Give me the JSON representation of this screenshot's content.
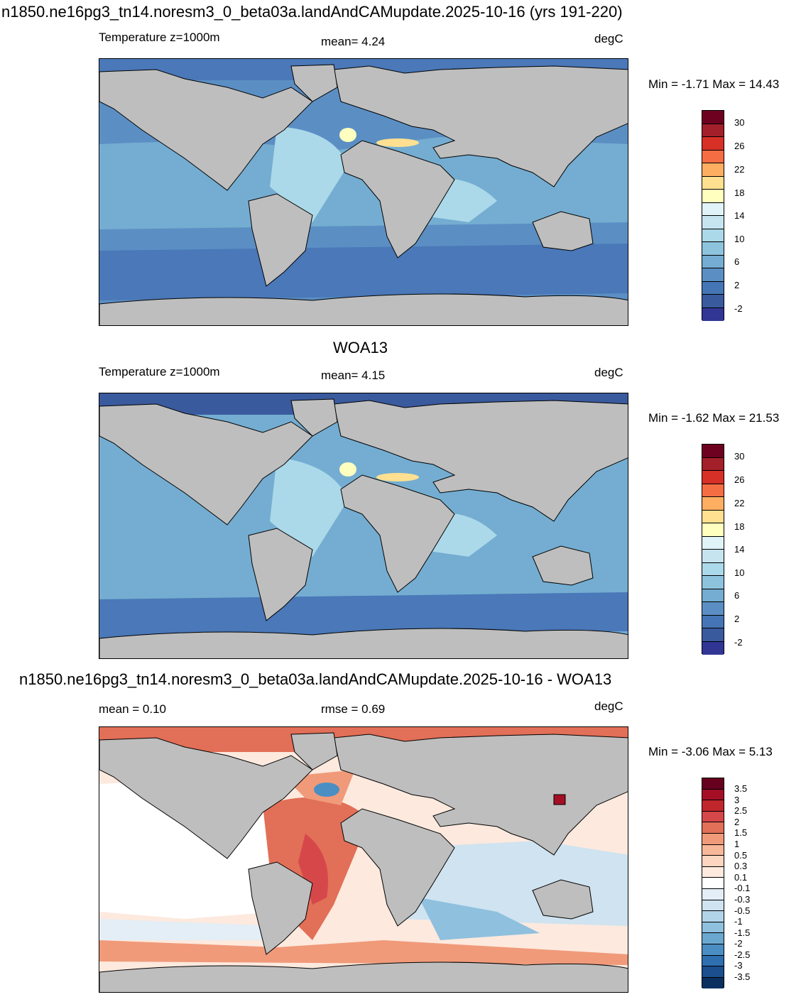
{
  "panel1": {
    "title": "n1850.ne16pg3_tn14.noresm3_0_beta03a.landAndCAMupdate.2025-10-16 (yrs 191-220)",
    "left_label": "Temperature z=1000m",
    "center_label": "mean=   4.24",
    "units": "degC",
    "minmax": "Min =  -1.71 Max =  14.43"
  },
  "panel2": {
    "title": "WOA13",
    "left_label": "Temperature z=1000m",
    "center_label": "mean=   4.15",
    "units": "degC",
    "minmax": "Min =  -1.62 Max =  21.53"
  },
  "panel3": {
    "title": "n1850.ne16pg3_tn14.noresm3_0_beta03a.landAndCAMupdate.2025-10-16 - WOA13",
    "left_label": "mean =   0.10",
    "center_label": "rmse =   0.69",
    "units": "degC",
    "minmax": "Min =  -3.06 Max =   5.13"
  },
  "temp_colorbar": {
    "tick_labels": [
      "30",
      "26",
      "22",
      "18",
      "14",
      "10",
      "6",
      "2",
      "-2"
    ],
    "colors_top_to_bottom": [
      "#6e0020",
      "#a31f29",
      "#d73027",
      "#f46d43",
      "#fdae61",
      "#fee090",
      "#ffffbf",
      "#e0f3f8",
      "#c6e4ef",
      "#abd9e9",
      "#8ec3de",
      "#74add1",
      "#5b8fc4",
      "#4575b4",
      "#3a5a9e",
      "#313695"
    ]
  },
  "diff_colorbar": {
    "tick_labels": [
      "3.5",
      "3",
      "2.5",
      "2",
      "1.5",
      "1",
      "0.5",
      "0.3",
      "0.1",
      "-0.1",
      "-0.3",
      "-0.5",
      "-1",
      "-1.5",
      "-2",
      "-2.5",
      "-3",
      "-3.5"
    ],
    "colors_top_to_bottom": [
      "#67001f",
      "#a50f26",
      "#c0272d",
      "#d6474a",
      "#e26f57",
      "#f09a7a",
      "#f7b799",
      "#fbd5c0",
      "#fde9de",
      "#ffffff",
      "#e3eef6",
      "#cfe3f0",
      "#b2d4e9",
      "#8fc0de",
      "#6aa8d0",
      "#4a8ec3",
      "#2e6fb0",
      "#1b4f8e",
      "#0b3060"
    ]
  },
  "colors": {
    "land": "#bebebe",
    "background": "#ffffff"
  }
}
